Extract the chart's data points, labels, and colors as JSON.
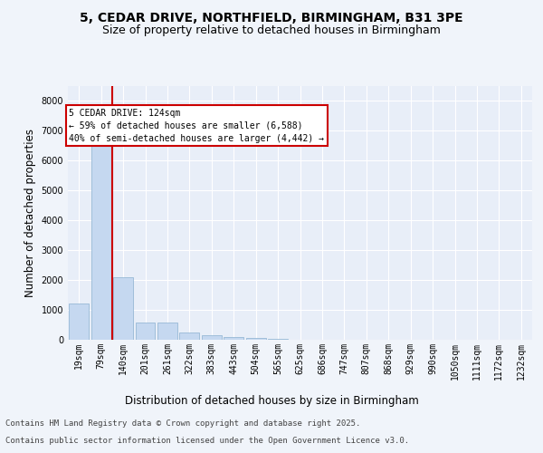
{
  "title_line1": "5, CEDAR DRIVE, NORTHFIELD, BIRMINGHAM, B31 3PE",
  "title_line2": "Size of property relative to detached houses in Birmingham",
  "xlabel": "Distribution of detached houses by size in Birmingham",
  "ylabel": "Number of detached properties",
  "categories": [
    "19sqm",
    "79sqm",
    "140sqm",
    "201sqm",
    "261sqm",
    "322sqm",
    "383sqm",
    "443sqm",
    "504sqm",
    "565sqm",
    "625sqm",
    "686sqm",
    "747sqm",
    "807sqm",
    "868sqm",
    "929sqm",
    "990sqm",
    "1050sqm",
    "1111sqm",
    "1172sqm",
    "1232sqm"
  ],
  "values": [
    1200,
    6650,
    2080,
    590,
    590,
    230,
    150,
    100,
    55,
    30,
    0,
    0,
    0,
    0,
    0,
    0,
    0,
    0,
    0,
    0,
    0
  ],
  "bar_color": "#c5d8f0",
  "bar_edge_color": "#8ab0d0",
  "vline_color": "#cc0000",
  "annotation_text": "5 CEDAR DRIVE: 124sqm\n← 59% of detached houses are smaller (6,588)\n40% of semi-detached houses are larger (4,442) →",
  "annotation_box_color": "#cc0000",
  "ylim": [
    0,
    8500
  ],
  "yticks": [
    0,
    1000,
    2000,
    3000,
    4000,
    5000,
    6000,
    7000,
    8000
  ],
  "footer_line1": "Contains HM Land Registry data © Crown copyright and database right 2025.",
  "footer_line2": "Contains public sector information licensed under the Open Government Licence v3.0.",
  "background_color": "#f0f4fa",
  "plot_bg_color": "#e8eef8",
  "grid_color": "#ffffff",
  "title_fontsize": 10,
  "subtitle_fontsize": 9,
  "tick_fontsize": 7,
  "label_fontsize": 8.5,
  "footer_fontsize": 6.5,
  "ann_fontsize": 7
}
